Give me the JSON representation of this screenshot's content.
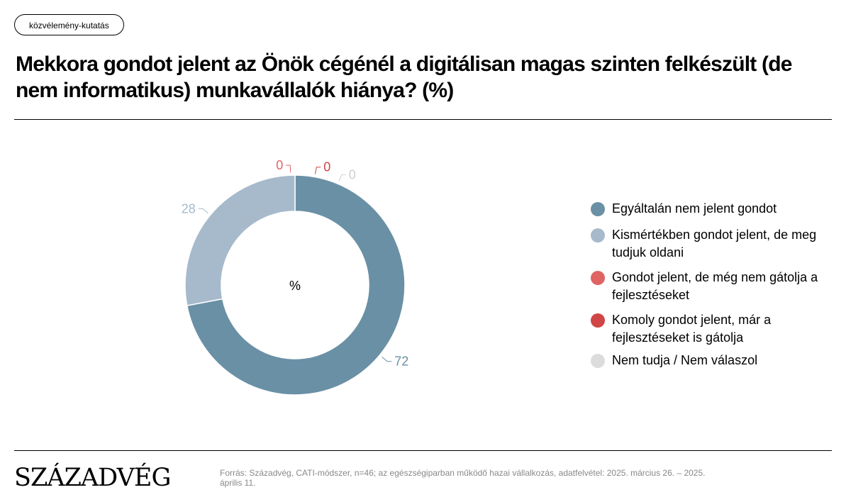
{
  "tag": "közvélemény-kutatás",
  "title": "Mekkora gondot jelent az Önök cégénél a digitálisan magas szinten felkészült (de nem informatikus) munkavállalók hiánya? (%)",
  "source": "Forrás: Századvég, CATI-módszer, n=46; az egészségiparban működő hazai vállalkozás, adatfelvétel: 2025. március 26. – 2025. április 11.",
  "logo": "SZÁZADVÉG",
  "chart_data": {
    "type": "pie",
    "variant": "donut",
    "center_label": "%",
    "legend_position": "right",
    "slices": [
      {
        "label": "Egyáltalán nem jelent gondot",
        "value": 72,
        "color": "#6a90a5"
      },
      {
        "label": "Kismértékben gondot jelent, de meg tudjuk oldani",
        "value": 28,
        "color": "#a6bacb"
      },
      {
        "label": "Gondot jelent, de még nem gátolja a fejlesztéseket",
        "value": 0,
        "color": "#e06464"
      },
      {
        "label": "Komoly gondot jelent, már a fejlesztéseket is gátolja",
        "value": 0,
        "color": "#d04545"
      },
      {
        "label": "Nem tudja / Nem válaszol",
        "value": 0,
        "color": "#dcdcdc"
      }
    ]
  }
}
